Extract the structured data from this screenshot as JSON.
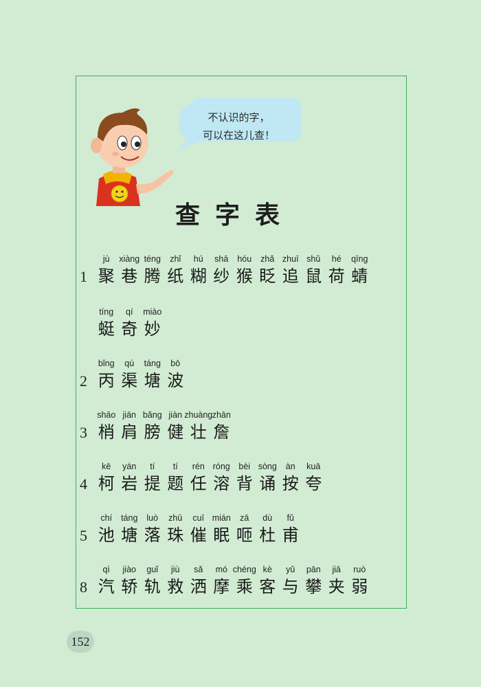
{
  "bubble_lines": [
    "不认识的字，",
    "可以在这儿查！"
  ],
  "title": "查字表",
  "page_number": "152",
  "groups": [
    {
      "number": "1",
      "items": [
        {
          "py": "jù",
          "hz": "聚"
        },
        {
          "py": "xiàng",
          "hz": "巷"
        },
        {
          "py": "téng",
          "hz": "腾"
        },
        {
          "py": "zhǐ",
          "hz": "纸"
        },
        {
          "py": "hú",
          "hz": "糊"
        },
        {
          "py": "shā",
          "hz": "纱"
        },
        {
          "py": "hóu",
          "hz": "猴"
        },
        {
          "py": "zhǎ",
          "hz": "眨"
        },
        {
          "py": "zhuī",
          "hz": "追"
        },
        {
          "py": "shǔ",
          "hz": "鼠"
        },
        {
          "py": "hé",
          "hz": "荷"
        },
        {
          "py": "qīng",
          "hz": "蜻"
        }
      ]
    },
    {
      "number": "",
      "items": [
        {
          "py": "tíng",
          "hz": "蜓"
        },
        {
          "py": "qí",
          "hz": "奇"
        },
        {
          "py": "miào",
          "hz": "妙"
        }
      ]
    },
    {
      "number": "2",
      "items": [
        {
          "py": "bǐng",
          "hz": "丙"
        },
        {
          "py": "qú",
          "hz": "渠"
        },
        {
          "py": "táng",
          "hz": "塘"
        },
        {
          "py": "bō",
          "hz": "波"
        }
      ]
    },
    {
      "number": "3",
      "items": [
        {
          "py": "shāo",
          "hz": "梢"
        },
        {
          "py": "jiān",
          "hz": "肩"
        },
        {
          "py": "bǎng",
          "hz": "膀"
        },
        {
          "py": "jiàn",
          "hz": "健"
        },
        {
          "py": "zhuàng",
          "hz": "壮"
        },
        {
          "py": "zhān",
          "hz": "詹"
        }
      ]
    },
    {
      "number": "4",
      "items": [
        {
          "py": "kē",
          "hz": "柯"
        },
        {
          "py": "yán",
          "hz": "岩"
        },
        {
          "py": "tí",
          "hz": "提"
        },
        {
          "py": "tí",
          "hz": "题"
        },
        {
          "py": "rén",
          "hz": "任"
        },
        {
          "py": "róng",
          "hz": "溶"
        },
        {
          "py": "bèi",
          "hz": "背"
        },
        {
          "py": "sòng",
          "hz": "诵"
        },
        {
          "py": "àn",
          "hz": "按"
        },
        {
          "py": "kuā",
          "hz": "夸"
        }
      ]
    },
    {
      "number": "5",
      "items": [
        {
          "py": "chí",
          "hz": "池"
        },
        {
          "py": "táng",
          "hz": "塘"
        },
        {
          "py": "luò",
          "hz": "落"
        },
        {
          "py": "zhū",
          "hz": "珠"
        },
        {
          "py": "cuī",
          "hz": "催"
        },
        {
          "py": "mián",
          "hz": "眠"
        },
        {
          "py": "zā",
          "hz": "咂"
        },
        {
          "py": "dù",
          "hz": "杜"
        },
        {
          "py": "fǔ",
          "hz": "甫"
        }
      ]
    },
    {
      "number": "8",
      "items": [
        {
          "py": "qì",
          "hz": "汽"
        },
        {
          "py": "jiào",
          "hz": "轿"
        },
        {
          "py": "guǐ",
          "hz": "轨"
        },
        {
          "py": "jiù",
          "hz": "救"
        },
        {
          "py": "sǎ",
          "hz": "洒"
        },
        {
          "py": "mó",
          "hz": "摩"
        },
        {
          "py": "chéng",
          "hz": "乘"
        },
        {
          "py": "kè",
          "hz": "客"
        },
        {
          "py": "yǔ",
          "hz": "与"
        },
        {
          "py": "pān",
          "hz": "攀"
        },
        {
          "py": "jiā",
          "hz": "夹"
        },
        {
          "py": "ruò",
          "hz": "弱"
        }
      ]
    }
  ]
}
